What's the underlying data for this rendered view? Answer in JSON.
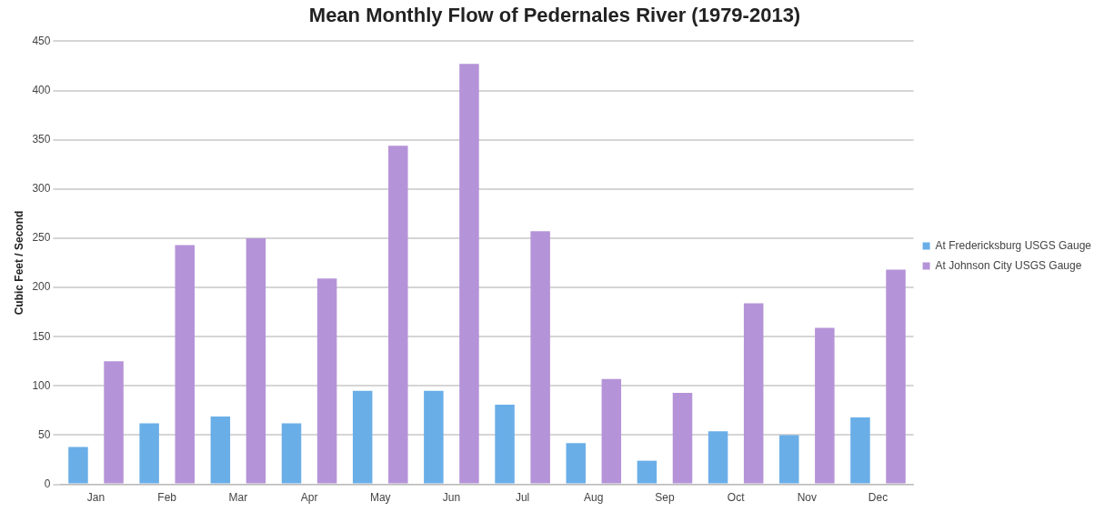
{
  "chart_data": {
    "type": "bar",
    "title": "Mean Monthly Flow of Pedernales River (1979-2013)",
    "ylabel": "Cubic Feet / Second",
    "categories": [
      "Jan",
      "Feb",
      "Mar",
      "Apr",
      "May",
      "Jun",
      "Jul",
      "Aug",
      "Sep",
      "Oct",
      "Nov",
      "Dec"
    ],
    "series": [
      {
        "name": "At Fredericksburg USGS Gauge",
        "color": "#6aaee8",
        "values": [
          38,
          62,
          69,
          62,
          95,
          95,
          81,
          42,
          24,
          54,
          50,
          68
        ]
      },
      {
        "name": "At Johnson City USGS Gauge",
        "color": "#b593d8",
        "values": [
          125,
          243,
          250,
          209,
          344,
          427,
          257,
          107,
          93,
          184,
          159,
          218
        ]
      }
    ],
    "ylim": [
      0,
      450
    ],
    "yticks": [
      0,
      50,
      100,
      150,
      200,
      250,
      300,
      350,
      400,
      450
    ],
    "grid": "y",
    "legend": "right"
  }
}
